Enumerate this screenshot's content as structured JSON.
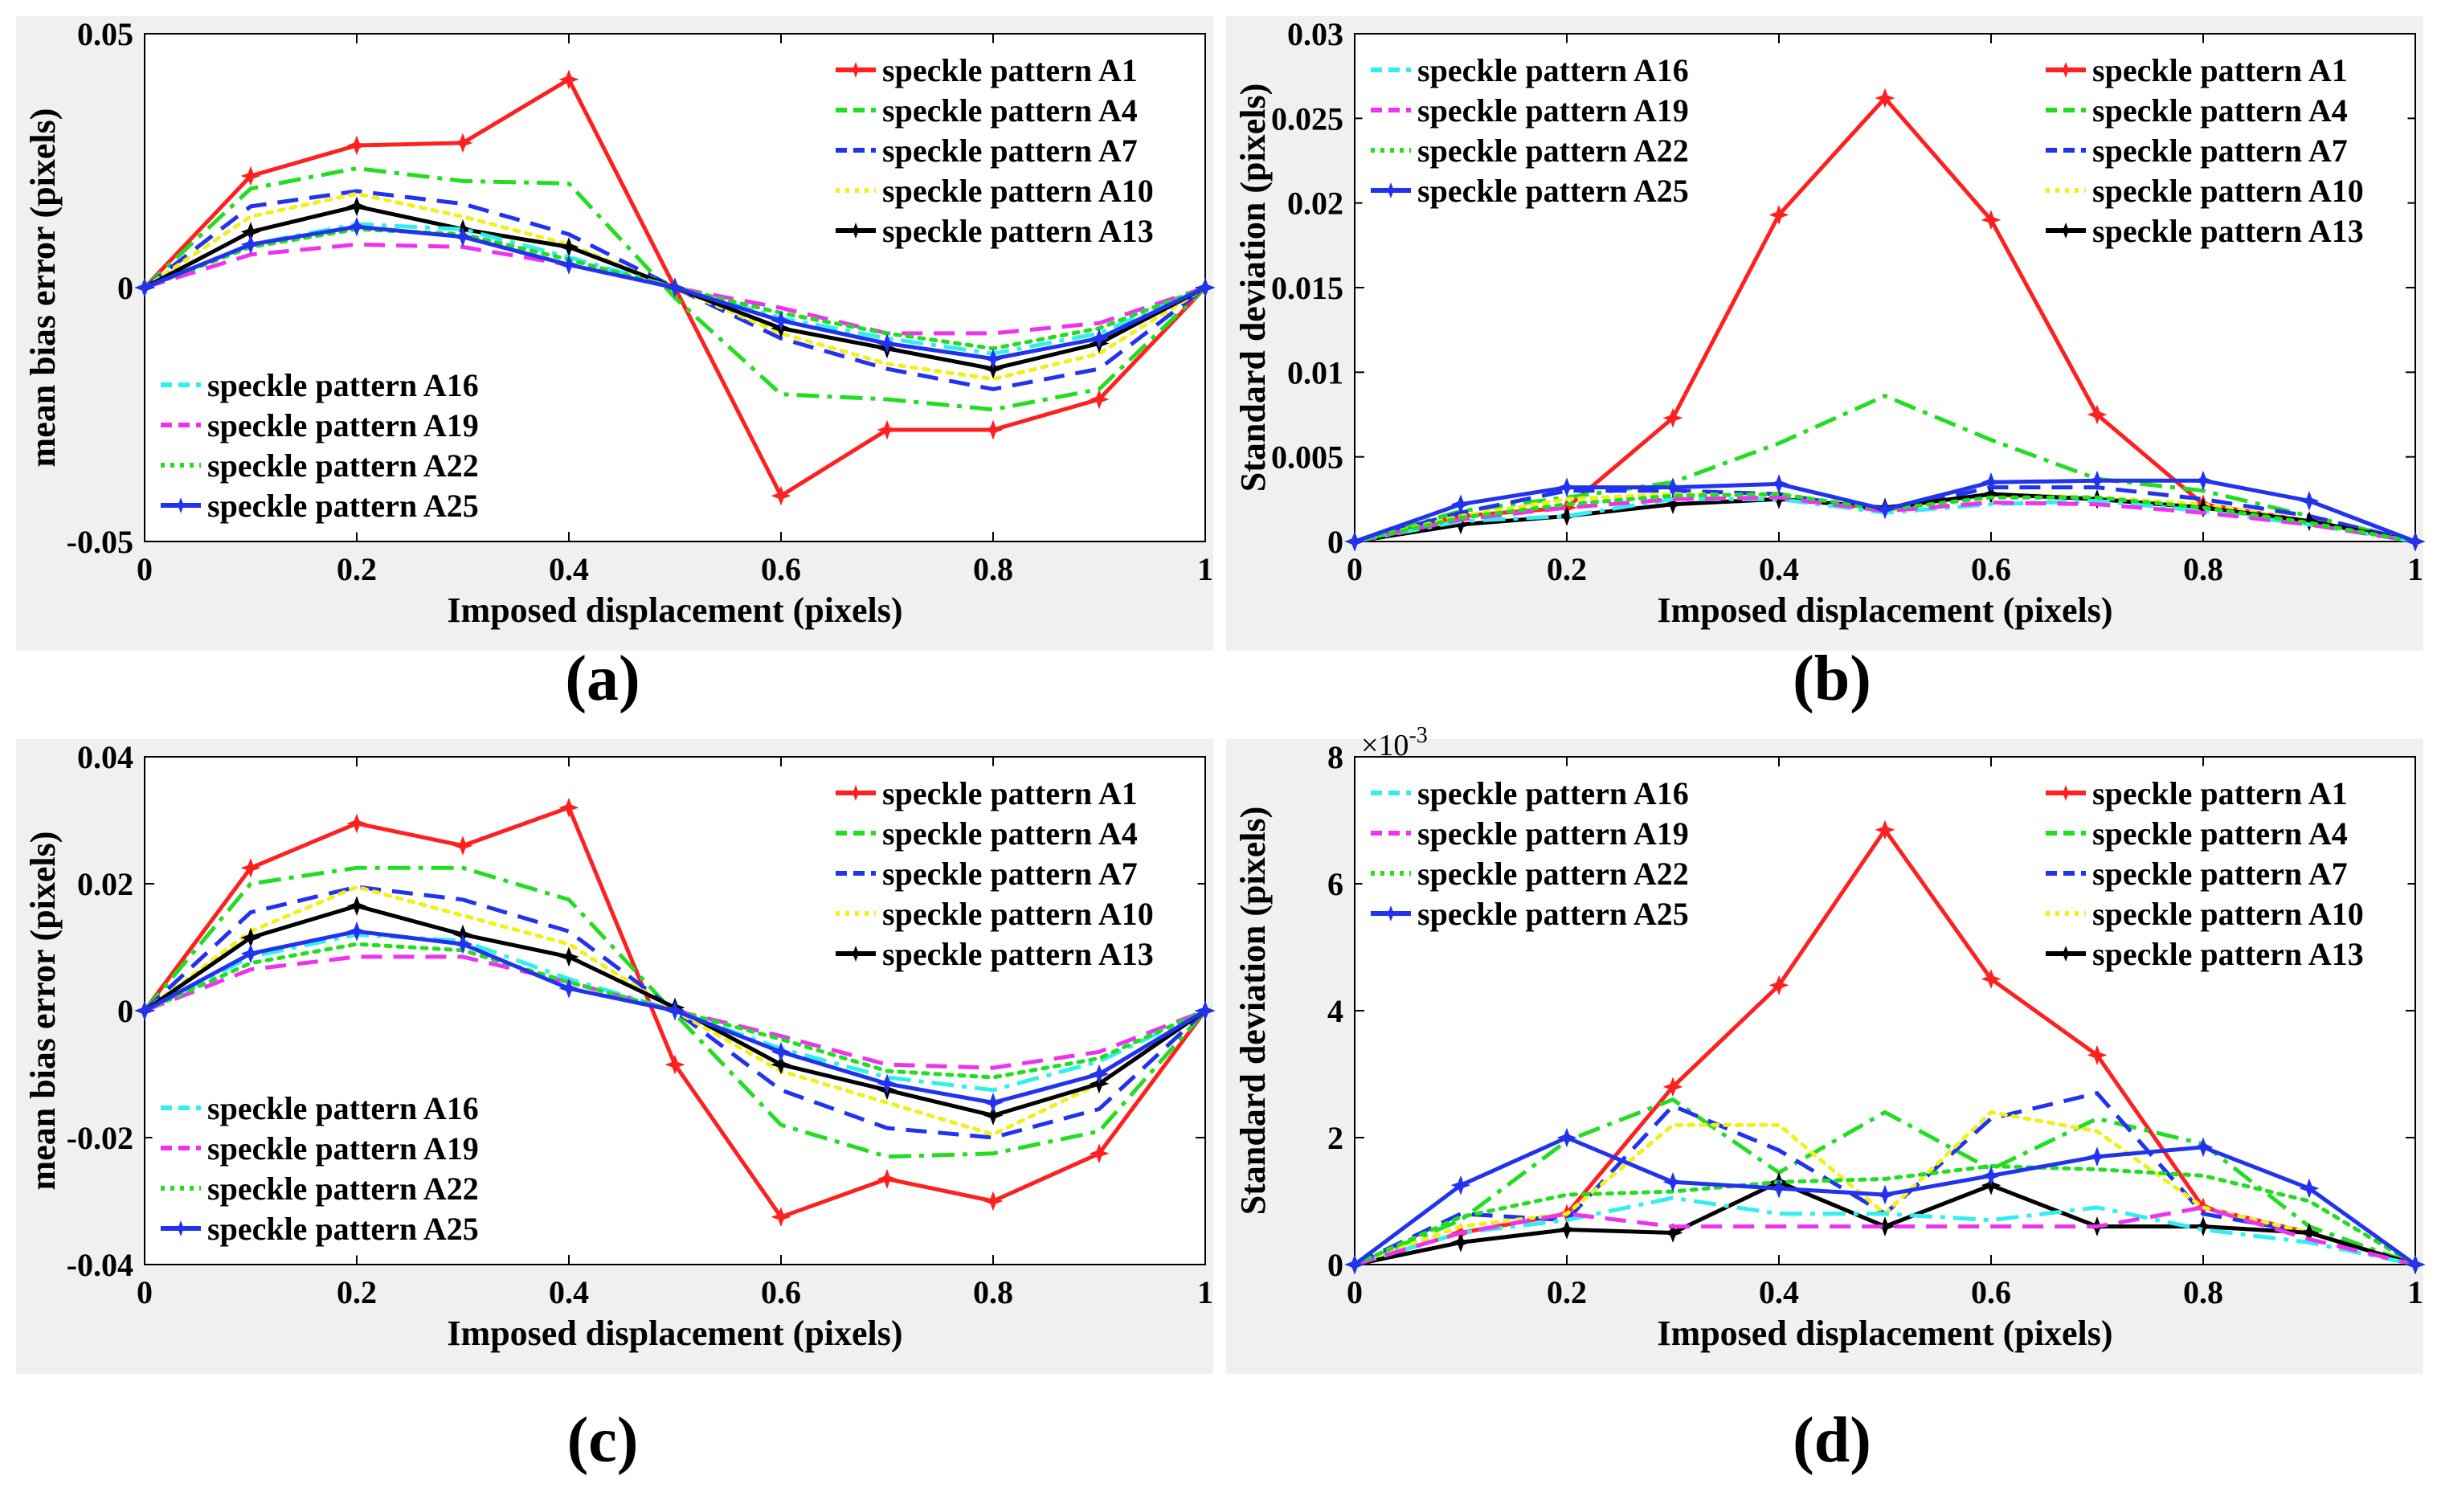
{
  "captions": {
    "a": "(a)",
    "b": "(b)",
    "c": "(c)",
    "d": "(d)"
  },
  "chart_data": [
    {
      "id": "a",
      "type": "line",
      "title": "",
      "xlabel": "Imposed displacement (pixels)",
      "ylabel": "mean bias error (pixels)",
      "xlim": [
        0,
        1
      ],
      "ylim": [
        -0.05,
        0.05
      ],
      "xticks": [
        0,
        0.2,
        0.4,
        0.6,
        0.8,
        1
      ],
      "xtick_labels": [
        "0",
        "0.2",
        "0.4",
        "0.6",
        "0.8",
        "1"
      ],
      "yticks": [
        -0.05,
        0,
        0.05
      ],
      "ytick_labels": [
        "-0.05",
        "0",
        "0.05"
      ],
      "legend_groups": [
        {
          "position": "top-right",
          "series": [
            0,
            1,
            2,
            3,
            4
          ]
        },
        {
          "position": "bottom-left",
          "series": [
            5,
            6,
            7,
            8
          ]
        }
      ],
      "x": [
        0,
        0.1,
        0.2,
        0.3,
        0.4,
        0.5,
        0.6,
        0.7,
        0.8,
        0.9,
        1
      ],
      "series": [
        {
          "name": "speckle pattern A1",
          "color": "#ff2020",
          "dash": "solid",
          "marker": "star",
          "values": [
            0,
            0.022,
            0.028,
            0.0285,
            0.041,
            0,
            -0.041,
            -0.028,
            -0.028,
            -0.022,
            0
          ]
        },
        {
          "name": "speckle pattern A4",
          "color": "#22dd22",
          "dash": "dashdot",
          "marker": "none",
          "values": [
            0,
            0.0195,
            0.0235,
            0.021,
            0.0205,
            -0.002,
            -0.021,
            -0.022,
            -0.024,
            -0.02,
            0
          ]
        },
        {
          "name": "speckle pattern A7",
          "color": "#2233ee",
          "dash": "dashed",
          "marker": "none",
          "values": [
            0,
            0.016,
            0.019,
            0.0165,
            0.0105,
            0,
            -0.01,
            -0.016,
            -0.02,
            -0.016,
            0
          ]
        },
        {
          "name": "speckle pattern A10",
          "color": "#f0f020",
          "dash": "dotted",
          "marker": "none",
          "values": [
            0,
            0.014,
            0.0185,
            0.014,
            0.0085,
            0,
            -0.009,
            -0.015,
            -0.018,
            -0.013,
            0
          ]
        },
        {
          "name": "speckle pattern A13",
          "color": "#000000",
          "dash": "solid",
          "marker": "star",
          "values": [
            0,
            0.011,
            0.016,
            0.0115,
            0.008,
            0,
            -0.008,
            -0.012,
            -0.016,
            -0.011,
            0
          ]
        },
        {
          "name": "speckle pattern A16",
          "color": "#33eeee",
          "dash": "dashdot",
          "marker": "none",
          "values": [
            0,
            0.0085,
            0.0125,
            0.0115,
            0.006,
            0,
            -0.006,
            -0.01,
            -0.013,
            -0.009,
            0
          ]
        },
        {
          "name": "speckle pattern A19",
          "color": "#ee33ee",
          "dash": "dashed",
          "marker": "none",
          "values": [
            0,
            0.0065,
            0.0085,
            0.008,
            0.0045,
            0,
            -0.004,
            -0.009,
            -0.009,
            -0.007,
            0
          ]
        },
        {
          "name": "speckle pattern A22",
          "color": "#22dd22",
          "dash": "dotted",
          "marker": "none",
          "values": [
            0,
            0.008,
            0.0115,
            0.0105,
            0.0055,
            0,
            -0.005,
            -0.009,
            -0.012,
            -0.008,
            0
          ]
        },
        {
          "name": "speckle pattern A25",
          "color": "#2233ee",
          "dash": "solid",
          "marker": "star",
          "values": [
            0,
            0.0085,
            0.012,
            0.01,
            0.0045,
            0,
            -0.0065,
            -0.011,
            -0.014,
            -0.01,
            0
          ]
        }
      ]
    },
    {
      "id": "b",
      "type": "line",
      "title": "",
      "xlabel": "Imposed displacement (pixels)",
      "ylabel": "Standard deviation (pixels)",
      "xlim": [
        0,
        1
      ],
      "ylim": [
        0,
        0.03
      ],
      "xticks": [
        0,
        0.2,
        0.4,
        0.6,
        0.8,
        1
      ],
      "xtick_labels": [
        "0",
        "0.2",
        "0.4",
        "0.6",
        "0.8",
        "1"
      ],
      "yticks": [
        0,
        0.005,
        0.01,
        0.015,
        0.02,
        0.025,
        0.03
      ],
      "ytick_labels": [
        "0",
        "0.005",
        "0.01",
        "0.015",
        "0.02",
        "0.025",
        "0.03"
      ],
      "legend_groups": [
        {
          "position": "top-right",
          "series": [
            0,
            1,
            2,
            3,
            4
          ]
        },
        {
          "position": "top-left",
          "series": [
            5,
            6,
            7,
            8
          ]
        }
      ],
      "x": [
        0,
        0.1,
        0.2,
        0.3,
        0.4,
        0.5,
        0.6,
        0.7,
        0.8,
        0.9,
        1
      ],
      "series": [
        {
          "name": "speckle pattern A1",
          "color": "#ff2020",
          "dash": "solid",
          "marker": "star",
          "values": [
            0,
            0.0015,
            0.002,
            0.0073,
            0.0193,
            0.0262,
            0.019,
            0.0075,
            0.0022,
            0.0012,
            0
          ]
        },
        {
          "name": "speckle pattern A4",
          "color": "#22dd22",
          "dash": "dashdot",
          "marker": "none",
          "values": [
            0,
            0.0018,
            0.0026,
            0.0035,
            0.0058,
            0.0086,
            0.006,
            0.0037,
            0.003,
            0.0015,
            0
          ]
        },
        {
          "name": "speckle pattern A7",
          "color": "#2233ee",
          "dash": "dashed",
          "marker": "none",
          "values": [
            0,
            0.0017,
            0.003,
            0.003,
            0.0028,
            0.0018,
            0.0032,
            0.0032,
            0.0025,
            0.0015,
            0
          ]
        },
        {
          "name": "speckle pattern A10",
          "color": "#f0f020",
          "dash": "dotted",
          "marker": "none",
          "values": [
            0,
            0.0015,
            0.0025,
            0.0028,
            0.0027,
            0.0018,
            0.0028,
            0.0026,
            0.0022,
            0.0012,
            0
          ]
        },
        {
          "name": "speckle pattern A13",
          "color": "#000000",
          "dash": "solid",
          "marker": "star",
          "values": [
            0,
            0.001,
            0.0015,
            0.0022,
            0.0025,
            0.002,
            0.0028,
            0.0025,
            0.002,
            0.0012,
            0
          ]
        },
        {
          "name": "speckle pattern A16",
          "color": "#33eeee",
          "dash": "dashdot",
          "marker": "none",
          "values": [
            0,
            0.0012,
            0.0015,
            0.0025,
            0.0025,
            0.0017,
            0.0022,
            0.0024,
            0.0018,
            0.001,
            0
          ]
        },
        {
          "name": "speckle pattern A19",
          "color": "#ee33ee",
          "dash": "dashed",
          "marker": "none",
          "values": [
            0,
            0.0013,
            0.002,
            0.0025,
            0.0026,
            0.0018,
            0.0023,
            0.0022,
            0.0017,
            0.001,
            0
          ]
        },
        {
          "name": "speckle pattern A22",
          "color": "#22dd22",
          "dash": "dotted",
          "marker": "none",
          "values": [
            0,
            0.0014,
            0.0022,
            0.0027,
            0.0028,
            0.0019,
            0.0026,
            0.0026,
            0.002,
            0.0011,
            0
          ]
        },
        {
          "name": "speckle pattern A25",
          "color": "#2233ee",
          "dash": "solid",
          "marker": "star",
          "values": [
            0,
            0.0022,
            0.0032,
            0.0032,
            0.0034,
            0.0019,
            0.0035,
            0.0036,
            0.0036,
            0.0024,
            0
          ]
        }
      ]
    },
    {
      "id": "c",
      "type": "line",
      "title": "",
      "xlabel": "Imposed displacement (pixels)",
      "ylabel": "mean bias error (pixels)",
      "xlim": [
        0,
        1
      ],
      "ylim": [
        -0.04,
        0.04
      ],
      "xticks": [
        0,
        0.2,
        0.4,
        0.6,
        0.8,
        1
      ],
      "xtick_labels": [
        "0",
        "0.2",
        "0.4",
        "0.6",
        "0.8",
        "1"
      ],
      "yticks": [
        -0.04,
        -0.02,
        0,
        0.02,
        0.04
      ],
      "ytick_labels": [
        "-0.04",
        "-0.02",
        "0",
        "0.02",
        "0.04"
      ],
      "legend_groups": [
        {
          "position": "top-right",
          "series": [
            0,
            1,
            2,
            3,
            4
          ]
        },
        {
          "position": "bottom-left",
          "series": [
            5,
            6,
            7,
            8
          ]
        }
      ],
      "x": [
        0,
        0.1,
        0.2,
        0.3,
        0.4,
        0.5,
        0.6,
        0.7,
        0.8,
        0.9,
        1
      ],
      "series": [
        {
          "name": "speckle pattern A1",
          "color": "#ff2020",
          "dash": "solid",
          "marker": "star",
          "values": [
            0,
            0.0225,
            0.0295,
            0.026,
            0.032,
            -0.0085,
            -0.0325,
            -0.0265,
            -0.03,
            -0.0225,
            0
          ]
        },
        {
          "name": "speckle pattern A4",
          "color": "#22dd22",
          "dash": "dashdot",
          "marker": "none",
          "values": [
            0,
            0.02,
            0.0225,
            0.0225,
            0.0175,
            -0.0005,
            -0.018,
            -0.023,
            -0.0225,
            -0.019,
            0
          ]
        },
        {
          "name": "speckle pattern A7",
          "color": "#2233ee",
          "dash": "dashed",
          "marker": "none",
          "values": [
            0,
            0.0155,
            0.0195,
            0.0175,
            0.0125,
            0,
            -0.0125,
            -0.0185,
            -0.02,
            -0.0155,
            0
          ]
        },
        {
          "name": "speckle pattern A10",
          "color": "#f0f020",
          "dash": "dotted",
          "marker": "none",
          "values": [
            0,
            0.0125,
            0.0195,
            0.015,
            0.0105,
            0,
            -0.0095,
            -0.0145,
            -0.0195,
            -0.0115,
            0
          ]
        },
        {
          "name": "speckle pattern A13",
          "color": "#000000",
          "dash": "solid",
          "marker": "star",
          "values": [
            0,
            0.0115,
            0.0165,
            0.012,
            0.0085,
            0.0005,
            -0.0085,
            -0.0125,
            -0.0165,
            -0.0115,
            0
          ]
        },
        {
          "name": "speckle pattern A16",
          "color": "#33eeee",
          "dash": "dashdot",
          "marker": "none",
          "values": [
            0,
            0.0085,
            0.012,
            0.011,
            0.005,
            0,
            -0.006,
            -0.0105,
            -0.0125,
            -0.008,
            0
          ]
        },
        {
          "name": "speckle pattern A19",
          "color": "#ee33ee",
          "dash": "dashed",
          "marker": "none",
          "values": [
            0,
            0.0065,
            0.0085,
            0.0085,
            0.0045,
            0,
            -0.004,
            -0.0085,
            -0.009,
            -0.0065,
            0
          ]
        },
        {
          "name": "speckle pattern A22",
          "color": "#22dd22",
          "dash": "dotted",
          "marker": "none",
          "values": [
            0,
            0.0075,
            0.0105,
            0.0095,
            0.0045,
            0,
            -0.0045,
            -0.0095,
            -0.0105,
            -0.0075,
            0
          ]
        },
        {
          "name": "speckle pattern A25",
          "color": "#2233ee",
          "dash": "solid",
          "marker": "star",
          "values": [
            0,
            0.009,
            0.0125,
            0.0105,
            0.0035,
            0,
            -0.0065,
            -0.0115,
            -0.0145,
            -0.01,
            0
          ]
        }
      ]
    },
    {
      "id": "d",
      "type": "line",
      "title": "",
      "xlabel": "Imposed displacement (pixels)",
      "ylabel": "Standard deviation (pixels)",
      "y_multiplier_label": "×10",
      "y_multiplier_exp": "-3",
      "xlim": [
        0,
        1
      ],
      "ylim": [
        0,
        8
      ],
      "xticks": [
        0,
        0.2,
        0.4,
        0.6,
        0.8,
        1
      ],
      "xtick_labels": [
        "0",
        "0.2",
        "0.4",
        "0.6",
        "0.8",
        "1"
      ],
      "yticks": [
        0,
        2,
        4,
        6,
        8
      ],
      "ytick_labels": [
        "0",
        "2",
        "4",
        "6",
        "8"
      ],
      "legend_groups": [
        {
          "position": "top-right",
          "series": [
            0,
            1,
            2,
            3,
            4
          ]
        },
        {
          "position": "top-left",
          "series": [
            5,
            6,
            7,
            8
          ]
        }
      ],
      "x": [
        0,
        0.1,
        0.2,
        0.3,
        0.4,
        0.5,
        0.6,
        0.7,
        0.8,
        0.9,
        1
      ],
      "series": [
        {
          "name": "speckle pattern A1",
          "color": "#ff2020",
          "dash": "solid",
          "marker": "star",
          "values": [
            0,
            0.5,
            0.8,
            2.8,
            4.4,
            6.85,
            4.5,
            3.3,
            0.9,
            0.5,
            0
          ]
        },
        {
          "name": "speckle pattern A4",
          "color": "#22dd22",
          "dash": "dashdot",
          "marker": "none",
          "values": [
            0,
            0.7,
            1.95,
            2.6,
            1.45,
            2.4,
            1.5,
            2.3,
            1.9,
            0.6,
            0
          ]
        },
        {
          "name": "speckle pattern A7",
          "color": "#2233ee",
          "dash": "dashed",
          "marker": "none",
          "values": [
            0,
            0.8,
            0.7,
            2.5,
            1.8,
            0.8,
            2.3,
            2.7,
            0.8,
            0.5,
            0
          ]
        },
        {
          "name": "speckle pattern A10",
          "color": "#f0f020",
          "dash": "dotted",
          "marker": "none",
          "values": [
            0,
            0.6,
            0.8,
            2.2,
            2.2,
            0.8,
            2.4,
            2.1,
            0.9,
            0.5,
            0
          ]
        },
        {
          "name": "speckle pattern A13",
          "color": "#000000",
          "dash": "solid",
          "marker": "star",
          "values": [
            0,
            0.35,
            0.55,
            0.5,
            1.3,
            0.6,
            1.25,
            0.6,
            0.6,
            0.5,
            0
          ]
        },
        {
          "name": "speckle pattern A16",
          "color": "#33eeee",
          "dash": "dashdot",
          "marker": "none",
          "values": [
            0,
            0.5,
            0.7,
            1.05,
            0.8,
            0.8,
            0.7,
            0.9,
            0.55,
            0.35,
            0
          ]
        },
        {
          "name": "speckle pattern A19",
          "color": "#ee33ee",
          "dash": "dashed",
          "marker": "none",
          "values": [
            0,
            0.5,
            0.8,
            0.6,
            0.6,
            0.6,
            0.6,
            0.6,
            0.9,
            0.4,
            0
          ]
        },
        {
          "name": "speckle pattern A22",
          "color": "#22dd22",
          "dash": "dotted",
          "marker": "none",
          "values": [
            0,
            0.75,
            1.1,
            1.15,
            1.3,
            1.35,
            1.55,
            1.5,
            1.4,
            1.0,
            0
          ]
        },
        {
          "name": "speckle pattern A25",
          "color": "#2233ee",
          "dash": "solid",
          "marker": "star",
          "values": [
            0,
            1.25,
            2.0,
            1.3,
            1.2,
            1.1,
            1.4,
            1.7,
            1.85,
            1.2,
            0
          ]
        }
      ]
    }
  ]
}
